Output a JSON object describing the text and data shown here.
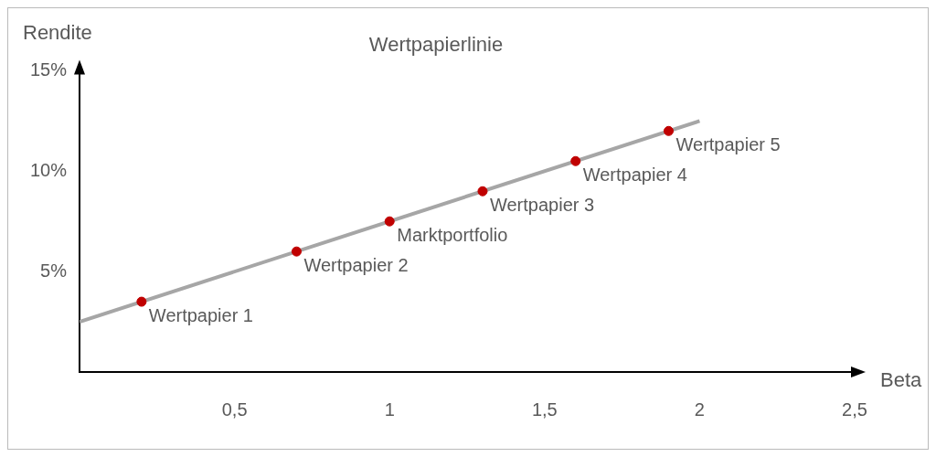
{
  "chart_data": {
    "type": "scatter",
    "title": "Wertpapierlinie",
    "xlabel": "Beta",
    "ylabel": "Rendite",
    "xlim": [
      0,
      2.5
    ],
    "xticks": [
      {
        "value": 0.5,
        "label": "0,5"
      },
      1,
      {
        "value": 1.5,
        "label": "1,5"
      },
      2,
      {
        "value": 2.5,
        "label": "2,5"
      }
    ],
    "ylim": [
      0,
      15
    ],
    "yticks": [
      {
        "value": 5,
        "label": "5%"
      },
      {
        "value": 10,
        "label": "10%"
      },
      {
        "value": 15,
        "label": "15%"
      }
    ],
    "series": [
      {
        "type": "line",
        "color": "#a6a6a6",
        "x": [
          0,
          2
        ],
        "values": [
          2.5,
          12.5
        ]
      },
      {
        "type": "scatter",
        "marker": "circle",
        "color": "#c00000",
        "x": [
          0.2,
          0.7,
          1,
          1.3,
          1.6,
          1.9
        ],
        "values": [
          3.5,
          6,
          7.5,
          9,
          10.5,
          12
        ]
      }
    ],
    "annotations": [
      {
        "text": "Wertpapier 1",
        "x": 0.2,
        "y": 3.5
      },
      {
        "text": "Wertpapier 2",
        "x": 0.7,
        "y": 6
      },
      {
        "text": "Marktportfolio",
        "x": 1,
        "y": 7.5
      },
      {
        "text": "Wertpapier 3",
        "x": 1.3,
        "y": 9
      },
      {
        "text": "Wertpapier 4",
        "x": 1.6,
        "y": 10.5
      },
      {
        "text": "Wertpapier 5",
        "x": 1.9,
        "y": 12
      }
    ]
  }
}
